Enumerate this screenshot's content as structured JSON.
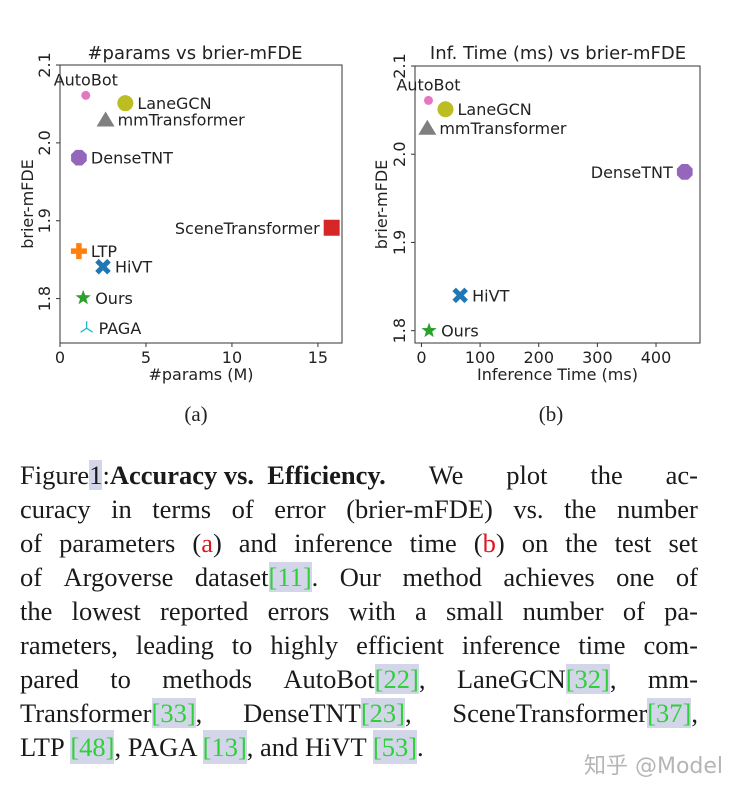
{
  "chart_data": [
    {
      "type": "scatter",
      "title": "#params vs brier-mFDE",
      "xlabel": "#params (M)",
      "ylabel": "brier-mFDE",
      "xlim": [
        0,
        16.4
      ],
      "ylim": [
        1.743,
        2.1
      ],
      "xticks": [
        "0",
        "5",
        "10",
        "15"
      ],
      "xtick_values": [
        0,
        5,
        10,
        15
      ],
      "yticks": [
        "1.8",
        "1.9",
        "2.0",
        "2.1"
      ],
      "ytick_values": [
        1.8,
        1.9,
        2.0,
        2.1
      ],
      "grid": false,
      "points": [
        {
          "label": "AutoBot",
          "x": 1.5,
          "y": 2.061,
          "marker": "small-circle",
          "color": "#e377c2"
        },
        {
          "label": "LaneGCN",
          "x": 3.8,
          "y": 2.051,
          "marker": "circle",
          "color": "#bcbd22"
        },
        {
          "label": "mmTransformer",
          "x": 2.65,
          "y": 2.03,
          "marker": "triangle",
          "color": "#7f7f7f"
        },
        {
          "label": "DenseTNT",
          "x": 1.1,
          "y": 1.981,
          "marker": "octagon",
          "color": "#9467bd"
        },
        {
          "label": "SceneTransformer",
          "x": 15.8,
          "y": 1.891,
          "marker": "square",
          "color": "#d62728"
        },
        {
          "label": "LTP",
          "x": 1.1,
          "y": 1.861,
          "marker": "plus",
          "color": "#ff7f0e"
        },
        {
          "label": "HiVT",
          "x": 2.5,
          "y": 1.841,
          "marker": "x",
          "color": "#1f77b4"
        },
        {
          "label": "Ours",
          "x": 1.35,
          "y": 1.801,
          "marker": "star",
          "color": "#2ca02c"
        },
        {
          "label": "PAGA",
          "x": 1.55,
          "y": 1.762,
          "marker": "tri-down",
          "color": "#17becf"
        }
      ]
    },
    {
      "type": "scatter",
      "title": "Inf. Time (ms) vs brier-mFDE",
      "xlabel": "Inference Time (ms)",
      "ylabel": "brier-mFDE",
      "xlim": [
        -11,
        475
      ],
      "ylim": [
        1.786,
        2.1
      ],
      "xticks": [
        "0",
        "100",
        "200",
        "300",
        "400"
      ],
      "xtick_values": [
        0,
        100,
        200,
        300,
        400
      ],
      "yticks": [
        "1.8",
        "1.9",
        "2.0",
        "2.1"
      ],
      "ytick_values": [
        1.8,
        1.9,
        2.0,
        2.1
      ],
      "grid": false,
      "points": [
        {
          "label": "AutoBot",
          "x": 12,
          "y": 2.061,
          "marker": "small-circle",
          "color": "#e377c2"
        },
        {
          "label": "LaneGCN",
          "x": 41,
          "y": 2.051,
          "marker": "circle",
          "color": "#bcbd22"
        },
        {
          "label": "mmTransformer",
          "x": 10,
          "y": 2.03,
          "marker": "triangle",
          "color": "#7f7f7f"
        },
        {
          "label": "DenseTNT",
          "x": 449,
          "y": 1.98,
          "marker": "octagon",
          "color": "#9467bd"
        },
        {
          "label": "HiVT",
          "x": 66,
          "y": 1.84,
          "marker": "x",
          "color": "#1f77b4"
        },
        {
          "label": "Ours",
          "x": 13,
          "y": 1.8,
          "marker": "star",
          "color": "#2ca02c"
        }
      ]
    }
  ],
  "subfigure_labels": [
    "(a)",
    "(b)"
  ],
  "caption": {
    "lines": [
      [
        {
          "t": "Figure "
        },
        {
          "t": "1",
          "c": "figref"
        },
        {
          "t": ": "
        },
        {
          "t": "Accuracy vs.  Efficiency.",
          "c": "bold"
        },
        {
          "t": "  We plot the ac-"
        }
      ],
      [
        {
          "t": "curacy in terms of error (brier-mFDE) vs.  the number"
        }
      ],
      [
        {
          "t": "of parameters ("
        },
        {
          "t": "a",
          "c": "red"
        },
        {
          "t": ") and inference time ("
        },
        {
          "t": "b",
          "c": "red"
        },
        {
          "t": ") on the test set"
        }
      ],
      [
        {
          "t": "of Argoverse dataset "
        },
        {
          "t": "[11]",
          "c": "ref"
        },
        {
          "t": ".  Our method achieves one of"
        }
      ],
      [
        {
          "t": "the lowest reported errors with a small number of pa-"
        }
      ],
      [
        {
          "t": "rameters, leading to highly efficient inference time com-"
        }
      ],
      [
        {
          "t": "pared to methods AutoBot "
        },
        {
          "t": "[22]",
          "c": "ref"
        },
        {
          "t": ", LaneGCN "
        },
        {
          "t": "[32]",
          "c": "ref"
        },
        {
          "t": ", mm-"
        }
      ],
      [
        {
          "t": "Transformer "
        },
        {
          "t": "[33]",
          "c": "ref"
        },
        {
          "t": ", DenseTNT "
        },
        {
          "t": "[23]",
          "c": "ref"
        },
        {
          "t": ", SceneTransformer "
        },
        {
          "t": "[37]",
          "c": "ref"
        },
        {
          "t": ","
        }
      ],
      [
        {
          "t": "LTP "
        },
        {
          "t": "[48]",
          "c": "ref"
        },
        {
          "t": ", PAGA "
        },
        {
          "t": "[13]",
          "c": "ref"
        },
        {
          "t": ", and HiVT "
        },
        {
          "t": "[53]",
          "c": "ref"
        },
        {
          "t": "."
        }
      ]
    ]
  },
  "watermark": "知乎 @Model"
}
